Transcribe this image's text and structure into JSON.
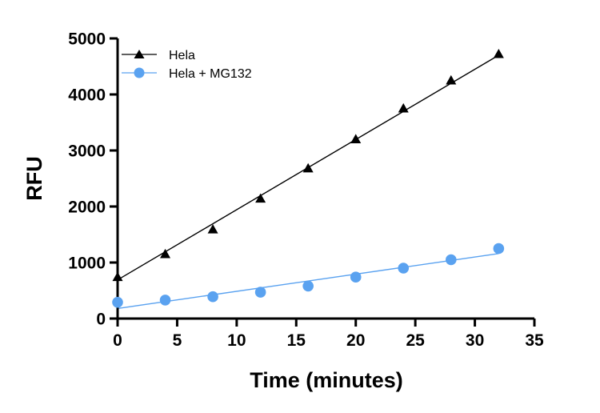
{
  "chart_data": {
    "type": "scatter",
    "title": "",
    "xlabel": "Time (minutes)",
    "ylabel": "RFU",
    "xlim": [
      0,
      35
    ],
    "ylim": [
      0,
      5000
    ],
    "xticks": [
      0,
      5,
      10,
      15,
      20,
      25,
      30,
      35
    ],
    "yticks": [
      0,
      1000,
      2000,
      3000,
      4000,
      5000
    ],
    "grid": false,
    "legend_position": "top-left",
    "series": [
      {
        "name": "Hela",
        "marker": "triangle",
        "color": "#000000",
        "x": [
          0,
          4,
          8,
          12,
          16,
          20,
          24,
          28,
          32
        ],
        "y": [
          740,
          1150,
          1590,
          2140,
          2680,
          3200,
          3750,
          4250,
          4720
        ],
        "fit_line": [
          [
            0,
            690
          ],
          [
            32,
            4700
          ]
        ]
      },
      {
        "name": "Hela + MG132",
        "marker": "circle",
        "color": "#5aa2f0",
        "x": [
          0,
          4,
          8,
          12,
          16,
          20,
          24,
          28,
          32
        ],
        "y": [
          290,
          330,
          390,
          470,
          580,
          740,
          900,
          1050,
          1250
        ],
        "fit_line": [
          [
            0,
            180
          ],
          [
            32,
            1160
          ]
        ]
      }
    ]
  }
}
